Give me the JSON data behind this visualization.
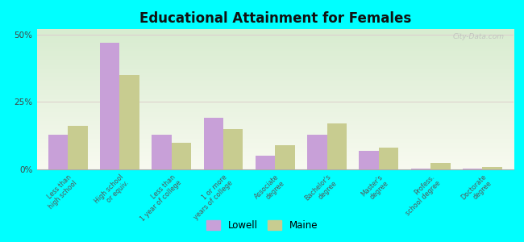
{
  "title": "Educational Attainment for Females",
  "categories": [
    "Less than\nhigh school",
    "High school\nor equiv.",
    "Less than\n1 year of college",
    "1 or more\nyears of college",
    "Associate\ndegree",
    "Bachelor's\ndegree",
    "Master's\ndegree",
    "Profess.\nschool degree",
    "Doctorate\ndegree"
  ],
  "lowell_values": [
    13,
    47,
    13,
    19,
    5,
    13,
    7,
    0.3,
    0.3
  ],
  "maine_values": [
    16,
    35,
    10,
    15,
    9,
    17,
    8,
    2.5,
    1
  ],
  "lowell_color": "#c8a0d8",
  "maine_color": "#c8cc90",
  "background_color": "#00ffff",
  "ylim": [
    0,
    52
  ],
  "yticks": [
    0,
    25,
    50
  ],
  "ytick_labels": [
    "0%",
    "25%",
    "50%"
  ],
  "bar_width": 0.38,
  "legend_labels": [
    "Lowell",
    "Maine"
  ]
}
